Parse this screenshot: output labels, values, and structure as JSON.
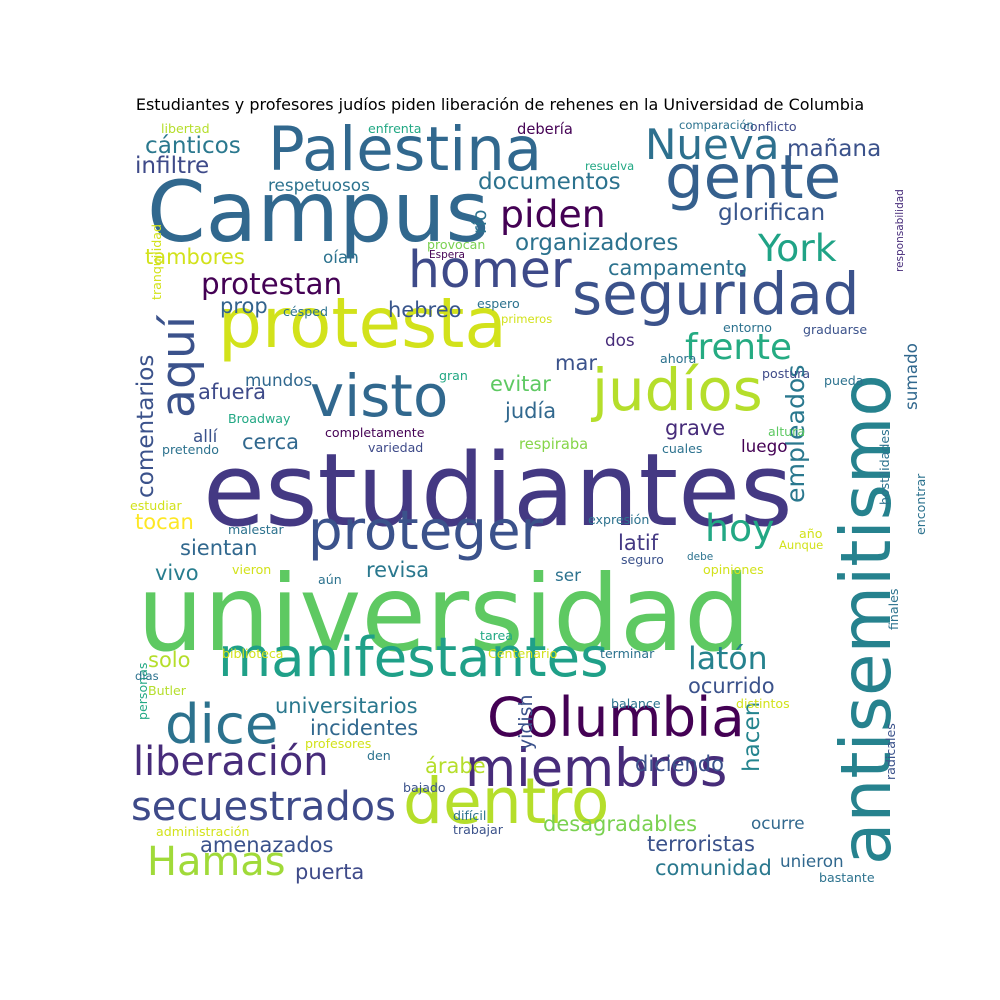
{
  "chart_data": {
    "type": "wordcloud",
    "title": "Estudiantes y profesores judíos piden liberación de rehenes en la Universidad de Columbia",
    "palette": "viridis",
    "words": [
      {
        "text": "universidad",
        "weight": 100,
        "color": "#5ec962"
      },
      {
        "text": "estudiantes",
        "weight": 96,
        "color": "#443983"
      },
      {
        "text": "Campus",
        "weight": 80,
        "color": "#31688e"
      },
      {
        "text": "antisemitismo",
        "weight": 66,
        "color": "#26828e"
      },
      {
        "text": "protesta",
        "weight": 66,
        "color": "#d2e21b"
      },
      {
        "text": "dentro",
        "weight": 60,
        "color": "#b5de2b"
      },
      {
        "text": "Palestina",
        "weight": 58,
        "color": "#31688e"
      },
      {
        "text": "gente",
        "weight": 58,
        "color": "#35608d"
      },
      {
        "text": "seguridad",
        "weight": 55,
        "color": "#3b528b"
      },
      {
        "text": "visto",
        "weight": 55,
        "color": "#31688e"
      },
      {
        "text": "judíos",
        "weight": 55,
        "color": "#b5de2b"
      },
      {
        "text": "proteger",
        "weight": 52,
        "color": "#3b528b"
      },
      {
        "text": "manifestantes",
        "weight": 52,
        "color": "#1fa088"
      },
      {
        "text": "Columbia",
        "weight": 52,
        "color": "#440154"
      },
      {
        "text": "dice",
        "weight": 52,
        "color": "#2c728e"
      },
      {
        "text": "miembros",
        "weight": 50,
        "color": "#472c7a"
      },
      {
        "text": "homer",
        "weight": 48,
        "color": "#3e4a89"
      },
      {
        "text": "aquí",
        "weight": 45,
        "color": "#3b528b"
      },
      {
        "text": "Nueva",
        "weight": 40,
        "color": "#2d708e"
      },
      {
        "text": "liberación",
        "weight": 38,
        "color": "#472c7a"
      },
      {
        "text": "secuestrados",
        "weight": 38,
        "color": "#3e4a89"
      },
      {
        "text": "Hamas",
        "weight": 38,
        "color": "#a0da39"
      },
      {
        "text": "York",
        "weight": 36,
        "color": "#20a386"
      },
      {
        "text": "piden",
        "weight": 36,
        "color": "#440154"
      },
      {
        "text": "hoy",
        "weight": 36,
        "color": "#22a884"
      },
      {
        "text": "frente",
        "weight": 34,
        "color": "#25ab82"
      },
      {
        "text": "latón",
        "weight": 30,
        "color": "#26828e"
      },
      {
        "text": "protestan",
        "weight": 28,
        "color": "#440154"
      },
      {
        "text": "empleados",
        "weight": 24,
        "color": "#2a788e"
      },
      {
        "text": "comentarios",
        "weight": 22,
        "color": "#3b528b"
      },
      {
        "text": "hacen",
        "weight": 22,
        "color": "#25848e"
      },
      {
        "text": "documentos",
        "weight": 22,
        "color": "#2c728e"
      },
      {
        "text": "organizadores",
        "weight": 22,
        "color": "#2c728e"
      },
      {
        "text": "glorifican",
        "weight": 22,
        "color": "#39568c"
      },
      {
        "text": "cánticos",
        "weight": 22,
        "color": "#2a788e"
      },
      {
        "text": "infiltre",
        "weight": 22,
        "color": "#3e4a89"
      },
      {
        "text": "mañana",
        "weight": 22,
        "color": "#3b528b"
      },
      {
        "text": "campamento",
        "weight": 20,
        "color": "#2c728e"
      },
      {
        "text": "tambores",
        "weight": 20,
        "color": "#d2e21b"
      },
      {
        "text": "prop",
        "weight": 20,
        "color": "#33638d"
      },
      {
        "text": "hebreo",
        "weight": 20,
        "color": "#39568c"
      },
      {
        "text": "mar",
        "weight": 20,
        "color": "#3b528b"
      },
      {
        "text": "afuera",
        "weight": 20,
        "color": "#3e4a89"
      },
      {
        "text": "evitar",
        "weight": 20,
        "color": "#5ec962"
      },
      {
        "text": "judía",
        "weight": 20,
        "color": "#31688e"
      },
      {
        "text": "cerca",
        "weight": 20,
        "color": "#31688e"
      },
      {
        "text": "grave",
        "weight": 20,
        "color": "#472c7a"
      },
      {
        "text": "tocan",
        "weight": 20,
        "color": "#fde725"
      },
      {
        "text": "sientan",
        "weight": 20,
        "color": "#31688e"
      },
      {
        "text": "latif",
        "weight": 20,
        "color": "#443983"
      },
      {
        "text": "vivo",
        "weight": 20,
        "color": "#287d8e"
      },
      {
        "text": "revisa",
        "weight": 20,
        "color": "#2a788e"
      },
      {
        "text": "solo",
        "weight": 20,
        "color": "#b5de2b"
      },
      {
        "text": "ocurrido",
        "weight": 20,
        "color": "#3b528b"
      },
      {
        "text": "universitarios",
        "weight": 20,
        "color": "#2a788e"
      },
      {
        "text": "incidentes",
        "weight": 20,
        "color": "#31688e"
      },
      {
        "text": "árabe",
        "weight": 20,
        "color": "#b5de2b"
      },
      {
        "text": "diciendo",
        "weight": 20,
        "color": "#3b528b"
      },
      {
        "text": "yidish",
        "weight": 18,
        "color": "#3b528b"
      },
      {
        "text": "desagradables",
        "weight": 20,
        "color": "#7ad151"
      },
      {
        "text": "amenazados",
        "weight": 20,
        "color": "#3b528b"
      },
      {
        "text": "terroristas",
        "weight": 20,
        "color": "#3b528b"
      },
      {
        "text": "puerta",
        "weight": 20,
        "color": "#3e4a89"
      },
      {
        "text": "comunidad",
        "weight": 20,
        "color": "#2a788e"
      },
      {
        "text": "río",
        "weight": 18,
        "color": "#2c728e"
      },
      {
        "text": "respetuosos",
        "weight": 16,
        "color": "#2c728e"
      },
      {
        "text": "oían",
        "weight": 16,
        "color": "#2c728e"
      },
      {
        "text": "dos",
        "weight": 16,
        "color": "#472c7a"
      },
      {
        "text": "mundos",
        "weight": 16,
        "color": "#31688e"
      },
      {
        "text": "allí",
        "weight": 16,
        "color": "#3b528b"
      },
      {
        "text": "sumado",
        "weight": 16,
        "color": "#31688e"
      },
      {
        "text": "luego",
        "weight": 16,
        "color": "#440154"
      },
      {
        "text": "ser",
        "weight": 16,
        "color": "#2c728e"
      },
      {
        "text": "unieron",
        "weight": 16,
        "color": "#31688e"
      },
      {
        "text": "ocurre",
        "weight": 16,
        "color": "#31688e"
      },
      {
        "text": "respiraba",
        "weight": 14,
        "color": "#86d549"
      },
      {
        "text": "debería",
        "weight": 14,
        "color": "#440154"
      },
      {
        "text": "encontrar",
        "weight": 12,
        "color": "#2c728e"
      },
      {
        "text": "hostilidades",
        "weight": 12,
        "color": "#2c728e"
      },
      {
        "text": "libertad",
        "weight": 12,
        "color": "#b5de2b"
      },
      {
        "text": "enfrenta",
        "weight": 12,
        "color": "#22a884"
      },
      {
        "text": "conflicto",
        "weight": 12,
        "color": "#3e4a89"
      },
      {
        "text": "comparación",
        "weight": 11,
        "color": "#2c728e"
      },
      {
        "text": "resuelva",
        "weight": 11,
        "color": "#22a884"
      },
      {
        "text": "responsabilidad",
        "weight": 10,
        "color": "#472c7a"
      },
      {
        "text": "tranquilidad",
        "weight": 12,
        "color": "#d2e21b"
      },
      {
        "text": "provocan",
        "weight": 12,
        "color": "#7ad151"
      },
      {
        "text": "Espera",
        "weight": 10,
        "color": "#440154"
      },
      {
        "text": "espero",
        "weight": 12,
        "color": "#2c728e"
      },
      {
        "text": "césped",
        "weight": 12,
        "color": "#2c728e"
      },
      {
        "text": "primeros",
        "weight": 11,
        "color": "#d2e21b"
      },
      {
        "text": "entorno",
        "weight": 12,
        "color": "#2c728e"
      },
      {
        "text": "graduarse",
        "weight": 12,
        "color": "#3b528b"
      },
      {
        "text": "ahora",
        "weight": 12,
        "color": "#2c728e"
      },
      {
        "text": "postura",
        "weight": 12,
        "color": "#3e4a89"
      },
      {
        "text": "pueda",
        "weight": 12,
        "color": "#2c728e"
      },
      {
        "text": "gran",
        "weight": 12,
        "color": "#22a884"
      },
      {
        "text": "Broadway",
        "weight": 12,
        "color": "#22a884"
      },
      {
        "text": "completamente",
        "weight": 12,
        "color": "#440154"
      },
      {
        "text": "altura",
        "weight": 12,
        "color": "#5ec962"
      },
      {
        "text": "pretendo",
        "weight": 12,
        "color": "#2c728e"
      },
      {
        "text": "variedad",
        "weight": 12,
        "color": "#3e4a89"
      },
      {
        "text": "cuales",
        "weight": 12,
        "color": "#2c728e"
      },
      {
        "text": "estudiar",
        "weight": 12,
        "color": "#d2e21b"
      },
      {
        "text": "malestar",
        "weight": 12,
        "color": "#2c728e"
      },
      {
        "text": "expresión",
        "weight": 12,
        "color": "#2c728e"
      },
      {
        "text": "año",
        "weight": 12,
        "color": "#d2e21b"
      },
      {
        "text": "Aunque",
        "weight": 11,
        "color": "#d2e21b"
      },
      {
        "text": "debe",
        "weight": 10,
        "color": "#2c728e"
      },
      {
        "text": "seguro",
        "weight": 12,
        "color": "#3b528b"
      },
      {
        "text": "opiniones",
        "weight": 12,
        "color": "#d2e21b"
      },
      {
        "text": "vieron",
        "weight": 12,
        "color": "#d2e21b"
      },
      {
        "text": "aún",
        "weight": 12,
        "color": "#2c728e"
      },
      {
        "text": "finales",
        "weight": 12,
        "color": "#2c728e"
      },
      {
        "text": "tarea",
        "weight": 12,
        "color": "#22a884"
      },
      {
        "text": "personas",
        "weight": 12,
        "color": "#22a884"
      },
      {
        "text": "biblioteca",
        "weight": 12,
        "color": "#d2e21b"
      },
      {
        "text": "Centenario",
        "weight": 12,
        "color": "#d2e21b"
      },
      {
        "text": "terminar",
        "weight": 12,
        "color": "#2c728e"
      },
      {
        "text": "días",
        "weight": 11,
        "color": "#2c728e"
      },
      {
        "text": "Butler",
        "weight": 12,
        "color": "#b5de2b"
      },
      {
        "text": "balance",
        "weight": 12,
        "color": "#2c728e"
      },
      {
        "text": "distintos",
        "weight": 12,
        "color": "#d2e21b"
      },
      {
        "text": "radicales",
        "weight": 12,
        "color": "#3b528b"
      },
      {
        "text": "profesores",
        "weight": 12,
        "color": "#d2e21b"
      },
      {
        "text": "den",
        "weight": 12,
        "color": "#2c728e"
      },
      {
        "text": "bajado",
        "weight": 12,
        "color": "#3b528b"
      },
      {
        "text": "difícil",
        "weight": 12,
        "color": "#2c728e"
      },
      {
        "text": "administración",
        "weight": 12,
        "color": "#d2e21b"
      },
      {
        "text": "trabajar",
        "weight": 12,
        "color": "#3b528b"
      },
      {
        "text": "bastante",
        "weight": 12,
        "color": "#2c728e"
      }
    ]
  }
}
